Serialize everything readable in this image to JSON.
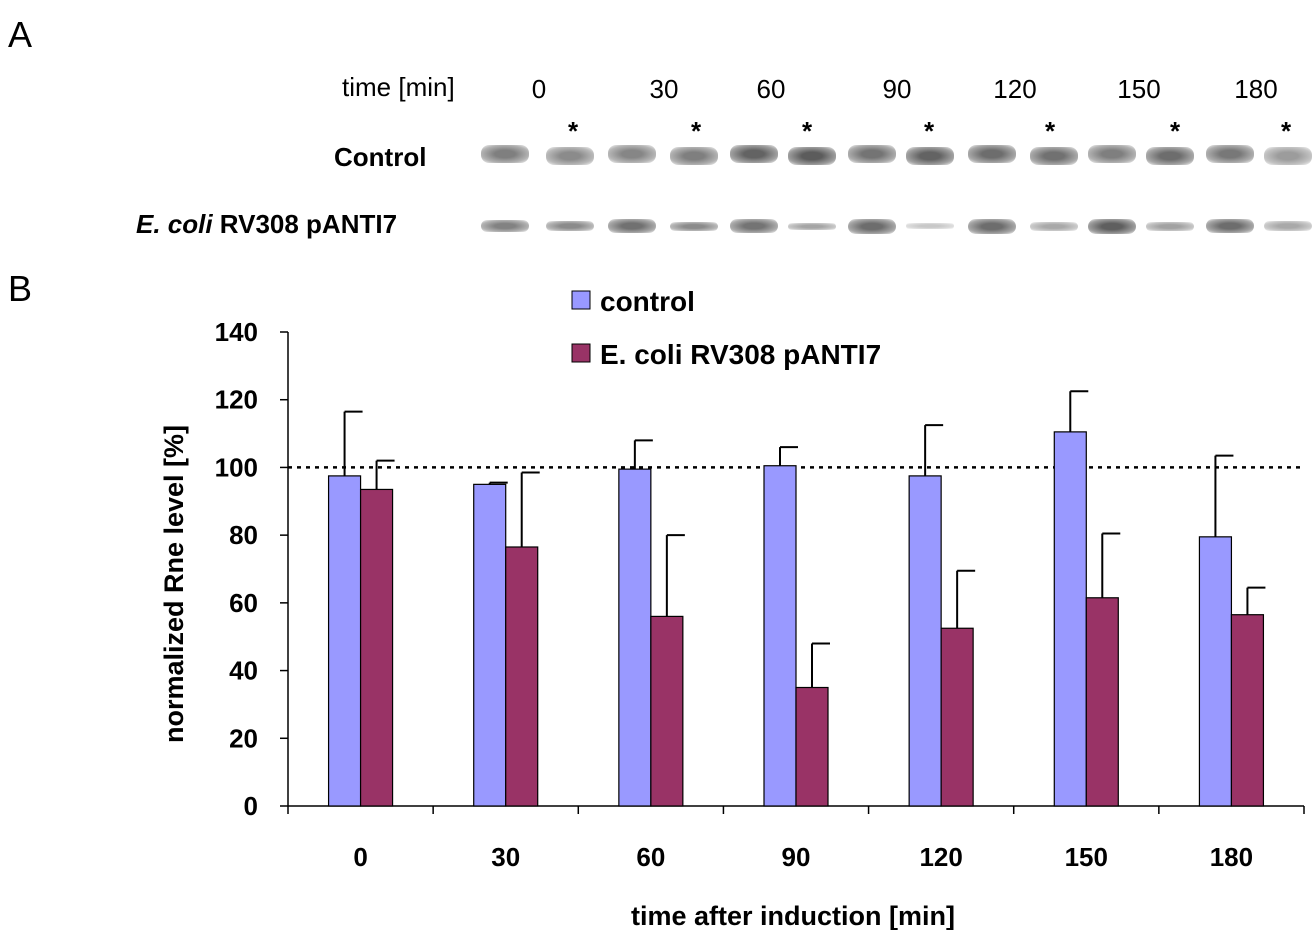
{
  "panels": {
    "a": "A",
    "b": "B"
  },
  "blot": {
    "time_title": "time [min]",
    "times": [
      "0",
      "30",
      "60",
      "90",
      "120",
      "150",
      "180"
    ],
    "star": "*",
    "row_control": "Control",
    "row_strain_italic": "E. coli",
    "row_strain_rest": " RV308 pANTI7"
  },
  "chart_data": {
    "type": "bar",
    "categories": [
      "0",
      "30",
      "60",
      "90",
      "120",
      "150",
      "180"
    ],
    "series": [
      {
        "name": "control",
        "color": "#9999ff",
        "values": [
          97.5,
          95,
          99.5,
          100.5,
          97.5,
          110.5,
          79.5
        ],
        "error": [
          19,
          0.5,
          8.5,
          5.5,
          15,
          12,
          24
        ]
      },
      {
        "name": "E. coli RV308 pANTI7",
        "color": "#993366",
        "values": [
          93.5,
          76.5,
          56,
          35,
          52.5,
          61.5,
          56.5
        ],
        "error": [
          8.5,
          22,
          24,
          13,
          17,
          19,
          8
        ]
      }
    ],
    "reference_line": 100,
    "ylim": [
      0,
      140
    ],
    "yticks": [
      "0",
      "20",
      "40",
      "60",
      "80",
      "100",
      "120",
      "140"
    ],
    "xlabel": "time after induction [min]",
    "ylabel": "normalized Rne level [%]",
    "legend_position": "top"
  }
}
